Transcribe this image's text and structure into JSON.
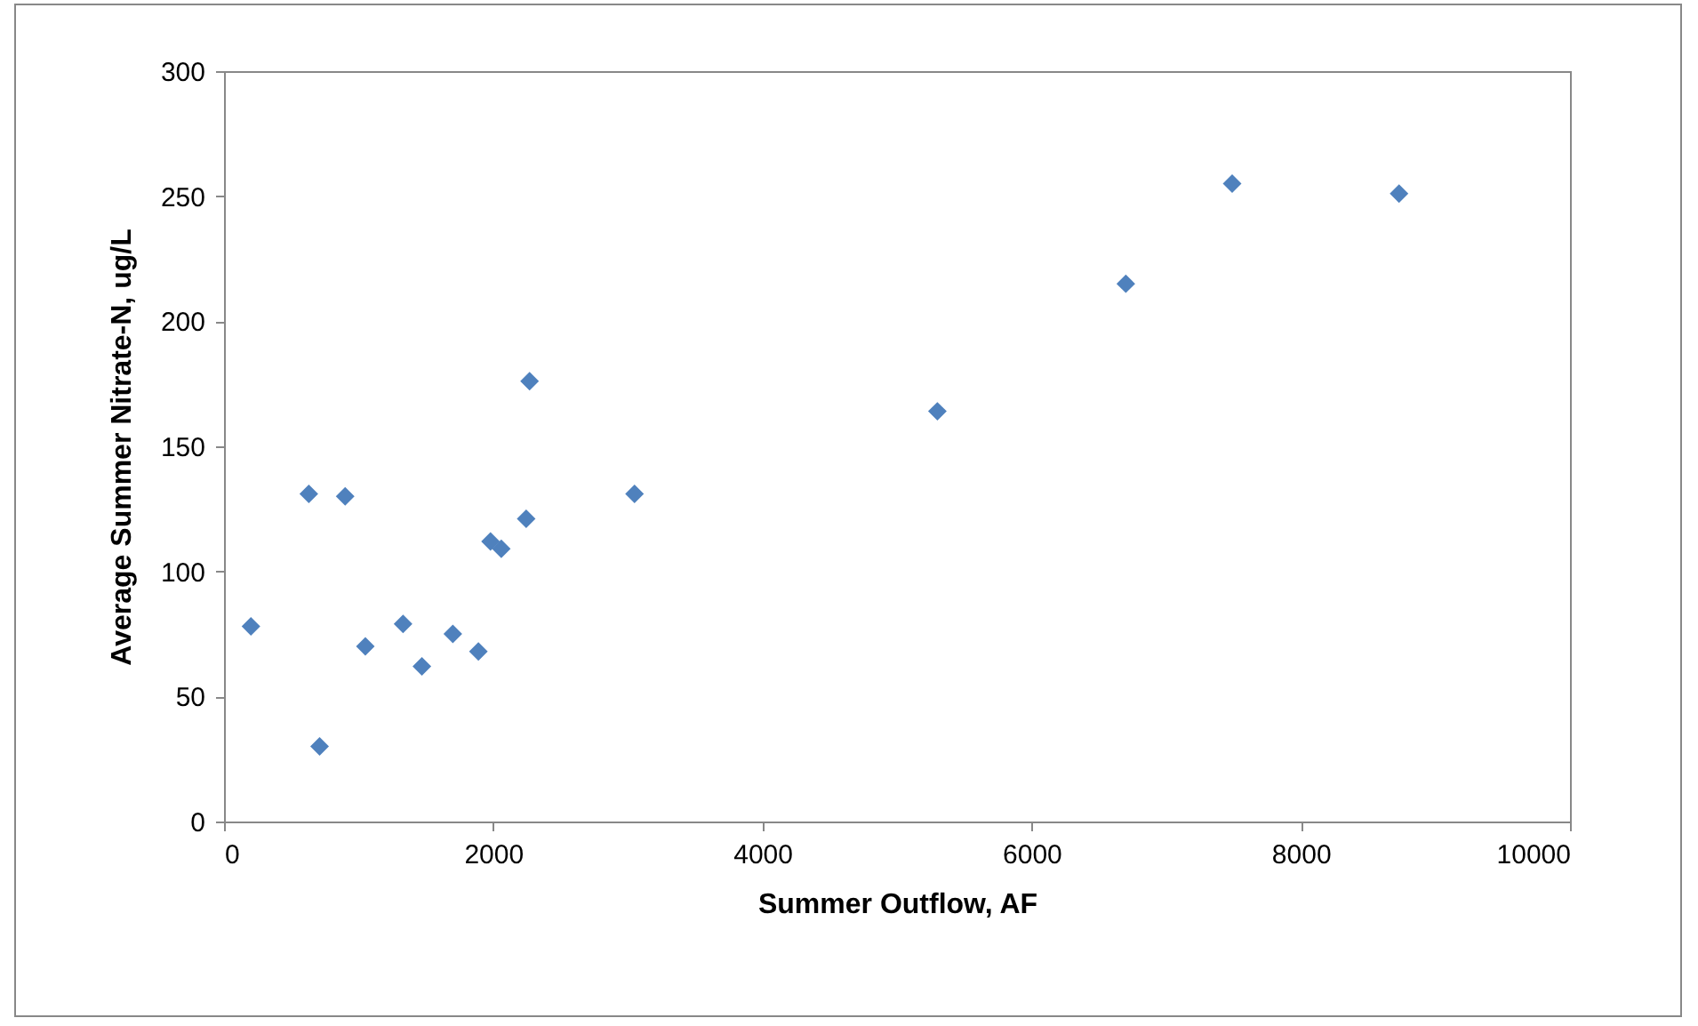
{
  "chart_data": {
    "type": "scatter",
    "xlabel": "Summer Outflow, AF",
    "ylabel": "Average Summer Nitrate-N, ug/L",
    "x": [
      200,
      630,
      710,
      900,
      1050,
      1330,
      1470,
      1700,
      1890,
      1980,
      2060,
      2245,
      2270,
      3050,
      5300,
      6700,
      7490,
      8730
    ],
    "series": [
      {
        "color": "#4f81bd",
        "values": [
          78,
          131,
          30,
          130,
          70,
          79,
          62,
          75,
          68,
          112,
          109,
          121,
          176,
          131,
          164,
          215,
          255,
          251
        ]
      }
    ],
    "xlim": [
      0,
      10000
    ],
    "xticks": [
      0,
      2000,
      4000,
      6000,
      8000,
      10000
    ],
    "ylim": [
      0,
      300
    ],
    "yticks": [
      0,
      50,
      100,
      150,
      200,
      250,
      300
    ],
    "marker": "diamond",
    "grid": false
  }
}
